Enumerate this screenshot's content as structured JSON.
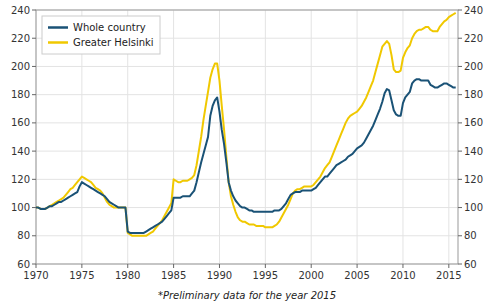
{
  "chart_data": {
    "type": "line",
    "annotations": [
      "*Preliminary data for the year 2015"
    ],
    "xlim": [
      1970,
      2016
    ],
    "xticks": [
      1970,
      1975,
      1980,
      1985,
      1990,
      1995,
      2000,
      2005,
      2010,
      2015
    ],
    "ylim": [
      60,
      240
    ],
    "yticks": [
      60,
      80,
      100,
      120,
      140,
      160,
      180,
      200,
      220,
      240
    ],
    "y2lim": [
      60,
      240
    ],
    "y2ticks": [
      60,
      80,
      100,
      120,
      140,
      160,
      180,
      200,
      220,
      240
    ],
    "grid": true,
    "legend": "upper left",
    "x": [
      1970.0,
      1970.25,
      1970.5,
      1970.75,
      1971.0,
      1971.25,
      1971.5,
      1971.75,
      1972.0,
      1972.25,
      1972.5,
      1972.75,
      1973.0,
      1973.25,
      1973.5,
      1973.75,
      1974.0,
      1974.25,
      1974.5,
      1974.75,
      1975.0,
      1975.25,
      1975.5,
      1975.75,
      1976.0,
      1976.25,
      1976.5,
      1976.75,
      1977.0,
      1977.25,
      1977.5,
      1977.75,
      1978.0,
      1978.25,
      1978.5,
      1978.75,
      1979.0,
      1979.25,
      1979.5,
      1979.75,
      1980.0,
      1980.25,
      1980.5,
      1980.75,
      1981.0,
      1981.25,
      1981.5,
      1981.75,
      1982.0,
      1982.25,
      1982.5,
      1982.75,
      1983.0,
      1983.25,
      1983.5,
      1983.75,
      1984.0,
      1984.25,
      1984.5,
      1984.75,
      1985.0,
      1985.25,
      1985.5,
      1985.75,
      1986.0,
      1986.25,
      1986.5,
      1986.75,
      1987.0,
      1987.25,
      1987.5,
      1987.75,
      1988.0,
      1988.25,
      1988.5,
      1988.75,
      1989.0,
      1989.25,
      1989.5,
      1989.75,
      1990.0,
      1990.25,
      1990.5,
      1990.75,
      1991.0,
      1991.25,
      1991.5,
      1991.75,
      1992.0,
      1992.25,
      1992.5,
      1992.75,
      1993.0,
      1993.25,
      1993.5,
      1993.75,
      1994.0,
      1994.25,
      1994.5,
      1994.75,
      1995.0,
      1995.25,
      1995.5,
      1995.75,
      1996.0,
      1996.25,
      1996.5,
      1996.75,
      1997.0,
      1997.25,
      1997.5,
      1997.75,
      1998.0,
      1998.25,
      1998.5,
      1998.75,
      1999.0,
      1999.25,
      1999.5,
      1999.75,
      2000.0,
      2000.25,
      2000.5,
      2000.75,
      2001.0,
      2001.25,
      2001.5,
      2001.75,
      2002.0,
      2002.25,
      2002.5,
      2002.75,
      2003.0,
      2003.25,
      2003.5,
      2003.75,
      2004.0,
      2004.25,
      2004.5,
      2004.75,
      2005.0,
      2005.25,
      2005.5,
      2005.75,
      2006.0,
      2006.25,
      2006.5,
      2006.75,
      2007.0,
      2007.25,
      2007.5,
      2007.75,
      2008.0,
      2008.25,
      2008.5,
      2008.75,
      2009.0,
      2009.25,
      2009.5,
      2009.75,
      2010.0,
      2010.25,
      2010.5,
      2010.75,
      2011.0,
      2011.25,
      2011.5,
      2011.75,
      2012.0,
      2012.25,
      2012.5,
      2012.75,
      2013.0,
      2013.25,
      2013.5,
      2013.75,
      2014.0,
      2014.25,
      2014.5,
      2014.75,
      2015.0,
      2015.25,
      2015.5,
      2015.75
    ],
    "series": [
      {
        "name": "Greater Helsinki",
        "color": "#f0c800",
        "values": [
          100,
          100,
          99,
          99,
          99,
          100,
          101,
          102,
          103,
          104,
          105,
          106,
          107,
          109,
          111,
          113,
          114,
          116,
          118,
          120,
          122,
          121,
          120,
          119,
          118,
          116,
          114,
          113,
          112,
          110,
          107,
          104,
          102,
          101,
          100,
          100,
          100,
          100,
          100,
          100,
          82,
          81,
          80,
          80,
          80,
          80,
          80,
          80,
          80,
          81,
          82,
          83,
          85,
          87,
          89,
          91,
          94,
          97,
          100,
          103,
          120,
          119,
          118,
          118,
          119,
          119,
          119,
          120,
          121,
          123,
          130,
          140,
          150,
          162,
          172,
          182,
          192,
          198,
          202,
          202,
          190,
          172,
          155,
          136,
          118,
          108,
          102,
          97,
          93,
          91,
          90,
          90,
          89,
          88,
          88,
          88,
          87,
          87,
          87,
          87,
          86,
          86,
          86,
          86,
          87,
          88,
          90,
          93,
          96,
          99,
          102,
          106,
          110,
          112,
          113,
          113,
          114,
          115,
          115,
          115,
          115,
          116,
          118,
          120,
          122,
          125,
          128,
          130,
          132,
          136,
          140,
          144,
          148,
          152,
          156,
          160,
          163,
          165,
          166,
          167,
          168,
          170,
          172,
          175,
          178,
          182,
          186,
          190,
          196,
          202,
          208,
          214,
          216,
          218,
          216,
          208,
          198,
          196,
          196,
          197,
          206,
          210,
          213,
          215,
          220,
          223,
          225,
          226,
          226,
          227,
          228,
          228,
          226,
          225,
          225,
          225,
          228,
          230,
          232,
          233,
          235,
          236,
          237,
          238
        ]
      },
      {
        "name": "Whole country",
        "color": "#1a5276",
        "values": [
          100,
          100,
          99,
          99,
          99,
          100,
          101,
          101,
          102,
          103,
          104,
          104,
          105,
          106,
          107,
          108,
          109,
          110,
          111,
          115,
          118,
          117,
          116,
          115,
          114,
          113,
          112,
          111,
          110,
          109,
          108,
          106,
          104,
          103,
          102,
          101,
          100,
          100,
          100,
          100,
          83,
          82,
          82,
          82,
          82,
          82,
          82,
          82,
          83,
          84,
          85,
          86,
          87,
          88,
          89,
          90,
          92,
          94,
          96,
          98,
          107,
          107,
          107,
          107,
          108,
          108,
          108,
          108,
          110,
          112,
          118,
          125,
          132,
          138,
          144,
          150,
          165,
          172,
          176,
          178,
          168,
          155,
          145,
          132,
          118,
          112,
          108,
          105,
          103,
          101,
          100,
          100,
          99,
          98,
          98,
          97,
          97,
          97,
          97,
          97,
          97,
          97,
          97,
          97,
          98,
          98,
          98,
          99,
          101,
          103,
          106,
          109,
          110,
          111,
          111,
          111,
          112,
          112,
          112,
          112,
          112,
          113,
          114,
          116,
          118,
          120,
          122,
          122,
          124,
          126,
          128,
          130,
          131,
          132,
          133,
          134,
          136,
          137,
          138,
          140,
          142,
          143,
          144,
          146,
          149,
          152,
          155,
          158,
          162,
          166,
          170,
          175,
          181,
          184,
          183,
          176,
          169,
          166,
          165,
          165,
          174,
          178,
          180,
          182,
          188,
          190,
          191,
          191,
          190,
          190,
          190,
          190,
          187,
          186,
          185,
          185,
          186,
          187,
          188,
          188,
          187,
          186,
          185,
          185
        ]
      }
    ]
  }
}
